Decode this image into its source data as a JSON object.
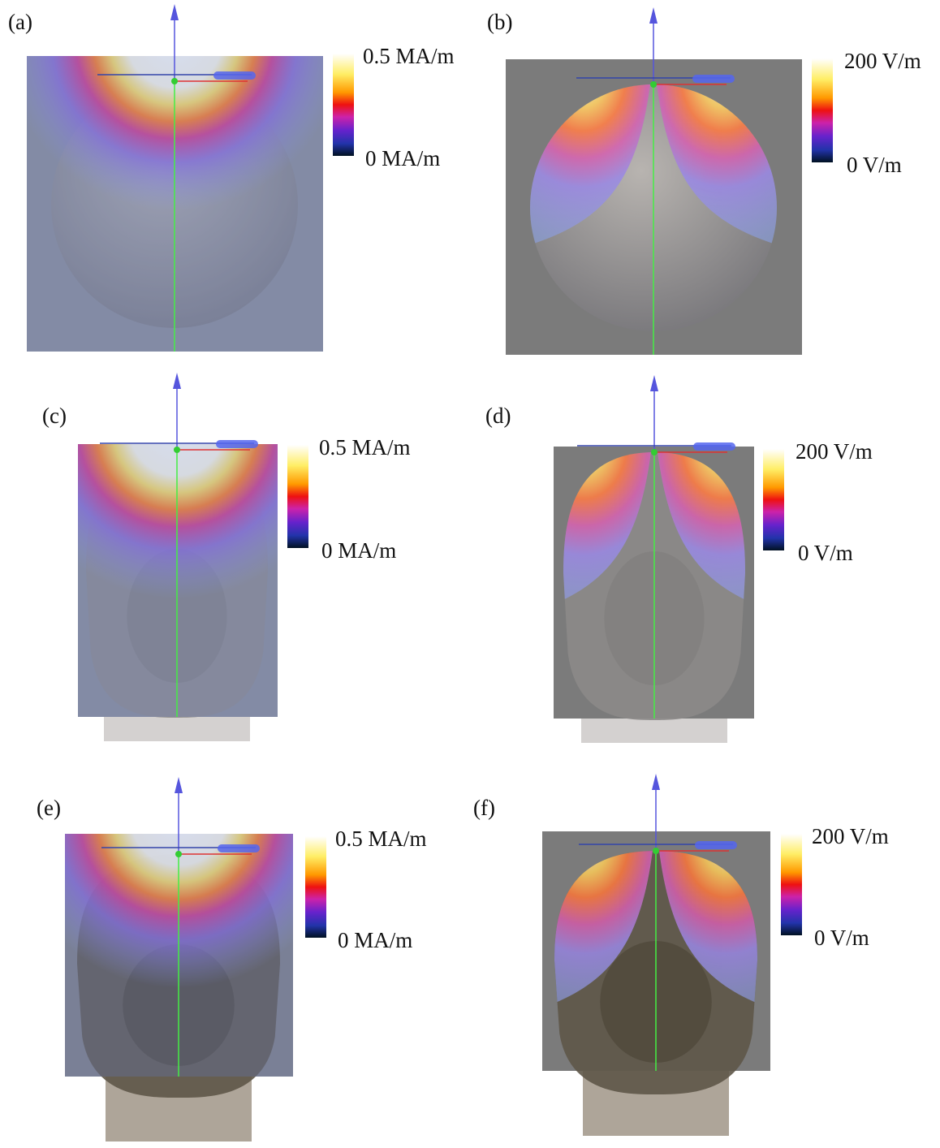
{
  "panels": [
    {
      "label": "(a)",
      "colorbar_max": "0.5 MA/m",
      "colorbar_min": "0 MA/m"
    },
    {
      "label": "(b)",
      "colorbar_max": "200 V/m",
      "colorbar_min": "0 V/m"
    },
    {
      "label": "(c)",
      "colorbar_max": "0.5 MA/m",
      "colorbar_min": "0 MA/m"
    },
    {
      "label": "(d)",
      "colorbar_max": "200 V/m",
      "colorbar_min": "0 V/m"
    },
    {
      "label": "(e)",
      "colorbar_max": "0.5 MA/m",
      "colorbar_min": "0 MA/m"
    },
    {
      "label": "(f)",
      "colorbar_max": "200 V/m",
      "colorbar_min": "0 V/m"
    }
  ]
}
